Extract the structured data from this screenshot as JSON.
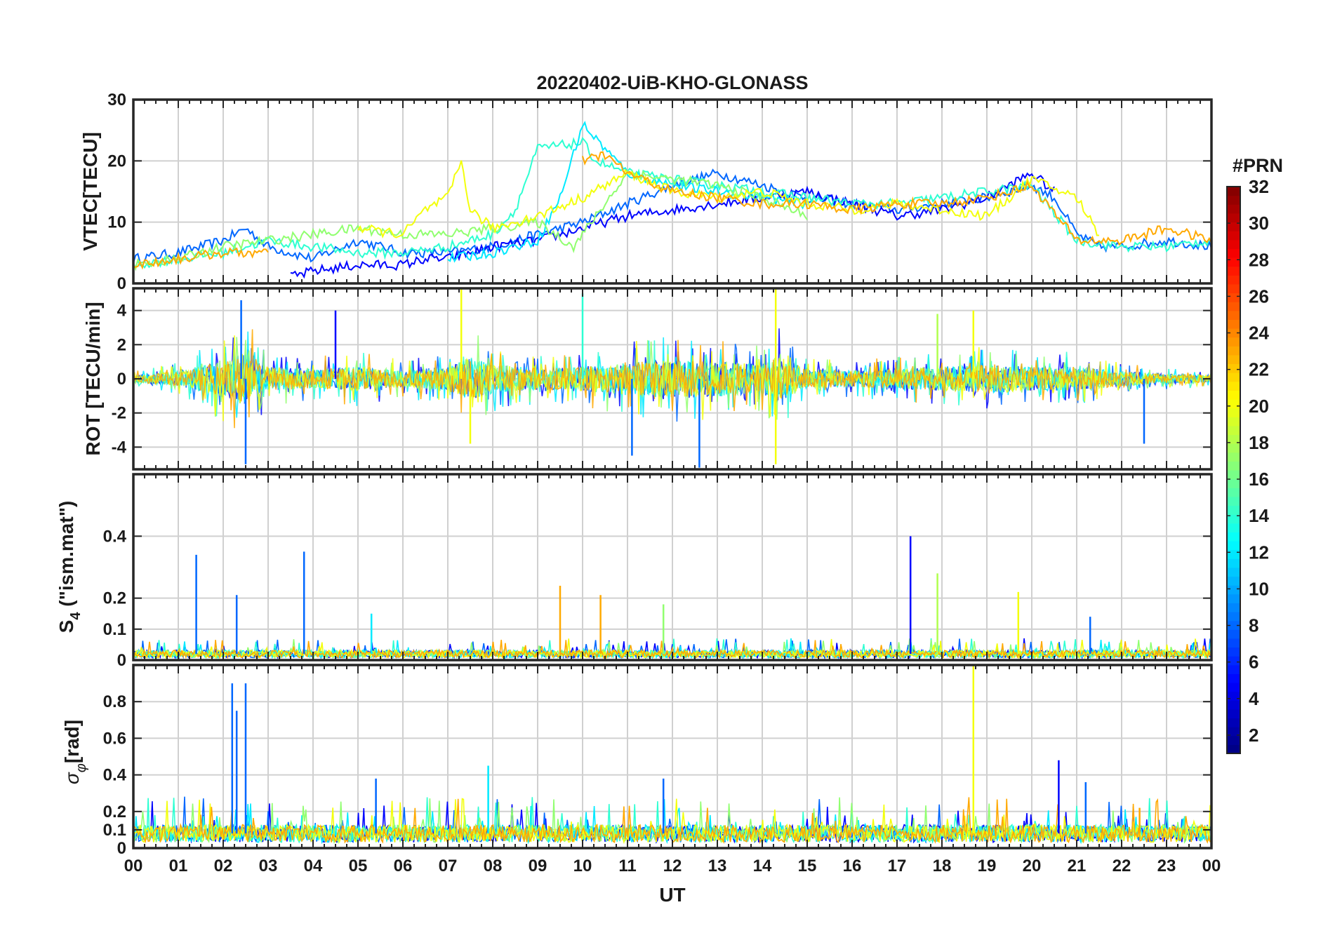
{
  "figure": {
    "title": "20220402-UiB-KHO-GLONASS",
    "xlabel": "UT",
    "colorbar": {
      "title": "#PRN",
      "ticks": [
        "2",
        "4",
        "6",
        "8",
        "10",
        "12",
        "14",
        "16",
        "18",
        "20",
        "22",
        "24",
        "26",
        "28",
        "30",
        "32"
      ],
      "range": [
        1,
        32
      ],
      "colormap": "jet"
    }
  },
  "chart_data": [
    {
      "type": "line",
      "id": "vtec",
      "ylabel": "VTEC[TECU]",
      "ylim": [
        0,
        30
      ],
      "yticks": [
        0,
        10,
        20,
        30
      ],
      "ytick_labels": [
        "0",
        "10",
        "20",
        "30"
      ],
      "xlim": [
        0,
        24
      ],
      "x_unit": "hours UT",
      "grid": true,
      "series": [
        {
          "prn": 8,
          "x": [
            0,
            1,
            2,
            2.5,
            3,
            4,
            5,
            6,
            7,
            8,
            9,
            10,
            11,
            12,
            13,
            14,
            15,
            16,
            17,
            18,
            19,
            20,
            20.5,
            21,
            21.5,
            22,
            23,
            24
          ],
          "values": [
            4,
            5,
            7,
            9,
            6,
            4,
            7,
            5,
            5,
            6,
            8,
            10,
            13,
            16,
            18,
            16,
            14,
            13,
            12,
            13,
            14,
            16,
            14,
            8,
            6,
            6,
            7,
            6
          ]
        },
        {
          "prn": 5,
          "x": [
            3.5,
            4,
            5,
            6,
            6.5,
            7,
            8,
            9,
            10,
            11,
            12,
            13,
            14,
            15,
            16,
            17,
            18,
            19,
            20,
            20.5
          ],
          "values": [
            1,
            2,
            3,
            3,
            4,
            4,
            6,
            7,
            9,
            11,
            12,
            13,
            14,
            15,
            13,
            11,
            12,
            14,
            18,
            15
          ]
        },
        {
          "prn": 14,
          "x": [
            0,
            1,
            2,
            3,
            4,
            5,
            6,
            7,
            8,
            8.5,
            9,
            10,
            10.3,
            11,
            12,
            13,
            14,
            15,
            16,
            17,
            18,
            19,
            20,
            21,
            22,
            23,
            24
          ],
          "values": [
            3,
            4,
            5,
            7,
            6,
            5,
            5,
            6,
            8,
            12,
            22,
            23,
            20,
            18,
            17,
            16,
            15,
            14,
            13,
            13,
            14,
            15,
            16,
            7,
            6,
            6,
            7
          ]
        },
        {
          "prn": 12,
          "x": [
            7,
            8,
            9,
            9.5,
            10,
            11,
            12,
            13,
            14,
            15
          ],
          "values": [
            4,
            5,
            7,
            14,
            26,
            18,
            16,
            15,
            14,
            13
          ]
        },
        {
          "prn": 17,
          "x": [
            0,
            1,
            2,
            3,
            4,
            5,
            6,
            7,
            8,
            9,
            9.8,
            10,
            11,
            12,
            13,
            14,
            15
          ],
          "values": [
            3,
            4,
            6,
            7,
            8,
            9,
            8,
            8,
            9,
            10,
            6,
            8,
            18,
            17,
            16,
            14,
            11
          ]
        },
        {
          "prn": 20,
          "x": [
            5,
            6,
            6.5,
            7,
            7.3,
            7.5,
            8,
            9,
            10,
            11,
            12,
            13,
            14,
            15,
            16,
            17,
            18,
            19,
            20,
            21,
            21.5
          ],
          "values": [
            9,
            8,
            12,
            14,
            20,
            12,
            9,
            11,
            14,
            18,
            15,
            14,
            15,
            13,
            12,
            13,
            12,
            11,
            17,
            14,
            8
          ]
        },
        {
          "prn": 23,
          "x": [
            0,
            1,
            2,
            2.5,
            3
          ],
          "values": [
            3,
            4,
            5,
            5,
            5
          ]
        },
        {
          "prn": 23,
          "x": [
            10,
            10.5,
            11,
            12,
            13,
            14,
            15,
            16,
            17,
            18,
            19,
            20,
            21,
            22,
            23,
            24
          ],
          "values": [
            20,
            21,
            18,
            15,
            14,
            13,
            13,
            12,
            13,
            13,
            14,
            16,
            7,
            7,
            9,
            7
          ]
        }
      ]
    },
    {
      "type": "line",
      "id": "rot",
      "ylabel": "ROT [TECU/min]",
      "ylim": [
        -5.3,
        5.3
      ],
      "yticks": [
        -4,
        -2,
        0,
        2,
        4
      ],
      "ytick_labels": [
        "-4",
        "-2",
        "0",
        "2",
        "4"
      ],
      "xlim": [
        0,
        24
      ],
      "grid": true,
      "activity_profile": {
        "x": [
          0,
          1,
          2,
          2.5,
          3,
          4,
          5,
          6,
          7,
          7.5,
          8,
          9,
          10,
          11,
          12,
          13,
          14,
          14.3,
          15,
          16,
          17,
          18,
          19,
          20,
          21,
          22,
          23,
          24
        ],
        "amplitude": [
          0.3,
          0.6,
          1.6,
          2.2,
          1.0,
          0.8,
          1.0,
          0.7,
          1.0,
          1.8,
          1.2,
          0.9,
          1.0,
          1.4,
          1.6,
          1.5,
          1.2,
          2.0,
          0.8,
          0.7,
          0.8,
          1.0,
          1.2,
          1.0,
          1.0,
          0.6,
          0.4,
          0.3
        ]
      },
      "spikes": [
        {
          "prn": 8,
          "x": 2.5,
          "y": -5.0
        },
        {
          "prn": 8,
          "x": 2.4,
          "y": 4.6
        },
        {
          "prn": 20,
          "x": 7.3,
          "y": 5.3
        },
        {
          "prn": 20,
          "x": 7.5,
          "y": -3.8
        },
        {
          "prn": 14,
          "x": 10.0,
          "y": 5.0
        },
        {
          "prn": 8,
          "x": 11.1,
          "y": -4.5
        },
        {
          "prn": 8,
          "x": 12.6,
          "y": -5.2
        },
        {
          "prn": 20,
          "x": 14.3,
          "y": 5.3
        },
        {
          "prn": 20,
          "x": 14.3,
          "y": -5.0
        },
        {
          "prn": 18,
          "x": 17.9,
          "y": 3.8
        },
        {
          "prn": 20,
          "x": 18.7,
          "y": 4.0
        },
        {
          "prn": 5,
          "x": 4.5,
          "y": 4.0
        },
        {
          "prn": 8,
          "x": 22.5,
          "y": -3.8
        }
      ]
    },
    {
      "type": "line",
      "id": "s4",
      "ylabel": "S4 (\"ism.mat\")",
      "ylabel_main": "S",
      "ylabel_sub": "4",
      "ylabel_rest": "  (\"ism.mat\")",
      "ylim": [
        0,
        0.6
      ],
      "yticks": [
        0,
        0.1,
        0.2,
        0.4
      ],
      "ytick_labels": [
        "0",
        "0.1",
        "0.2",
        "0.4"
      ],
      "xlim": [
        0,
        24
      ],
      "grid": true,
      "baseline": 0.02,
      "spikes": [
        {
          "prn": 8,
          "x": 1.4,
          "y": 0.34
        },
        {
          "prn": 8,
          "x": 2.3,
          "y": 0.21
        },
        {
          "prn": 8,
          "x": 3.8,
          "y": 0.35
        },
        {
          "prn": 12,
          "x": 5.3,
          "y": 0.15
        },
        {
          "prn": 23,
          "x": 9.5,
          "y": 0.24
        },
        {
          "prn": 23,
          "x": 10.4,
          "y": 0.21
        },
        {
          "prn": 17,
          "x": 11.8,
          "y": 0.18
        },
        {
          "prn": 5,
          "x": 17.3,
          "y": 0.4
        },
        {
          "prn": 18,
          "x": 17.9,
          "y": 0.28
        },
        {
          "prn": 20,
          "x": 19.7,
          "y": 0.22
        },
        {
          "prn": 8,
          "x": 21.3,
          "y": 0.14
        }
      ]
    },
    {
      "type": "line",
      "id": "sigma_phi",
      "ylabel": "σφ[rad]",
      "ylabel_main": "σ",
      "ylabel_sub": "φ",
      "ylabel_rest": "[rad]",
      "ylim": [
        0,
        1.0
      ],
      "yticks": [
        0,
        0.1,
        0.2,
        0.4,
        0.6,
        0.8
      ],
      "ytick_labels": [
        "0",
        "0.1",
        "0.2",
        "0.4",
        "0.6",
        "0.8"
      ],
      "xlim": [
        0,
        24
      ],
      "xticks": [
        0,
        1,
        2,
        3,
        4,
        5,
        6,
        7,
        8,
        9,
        10,
        11,
        12,
        13,
        14,
        15,
        16,
        17,
        18,
        19,
        20,
        21,
        22,
        23,
        24
      ],
      "xtick_labels": [
        "00",
        "01",
        "02",
        "03",
        "04",
        "05",
        "06",
        "07",
        "08",
        "09",
        "10",
        "11",
        "12",
        "13",
        "14",
        "15",
        "16",
        "17",
        "18",
        "19",
        "20",
        "21",
        "22",
        "23",
        "00"
      ],
      "grid": true,
      "baseline": 0.08,
      "spikes": [
        {
          "prn": 8,
          "x": 2.2,
          "y": 0.9
        },
        {
          "prn": 8,
          "x": 2.5,
          "y": 0.9
        },
        {
          "prn": 8,
          "x": 2.3,
          "y": 0.75
        },
        {
          "prn": 12,
          "x": 7.9,
          "y": 0.45
        },
        {
          "prn": 8,
          "x": 5.4,
          "y": 0.38
        },
        {
          "prn": 8,
          "x": 11.8,
          "y": 0.38
        },
        {
          "prn": 20,
          "x": 18.7,
          "y": 1.0
        },
        {
          "prn": 5,
          "x": 20.6,
          "y": 0.48
        },
        {
          "prn": 8,
          "x": 21.2,
          "y": 0.36
        },
        {
          "prn": 23,
          "x": 22.4,
          "y": 0.22
        }
      ]
    }
  ]
}
